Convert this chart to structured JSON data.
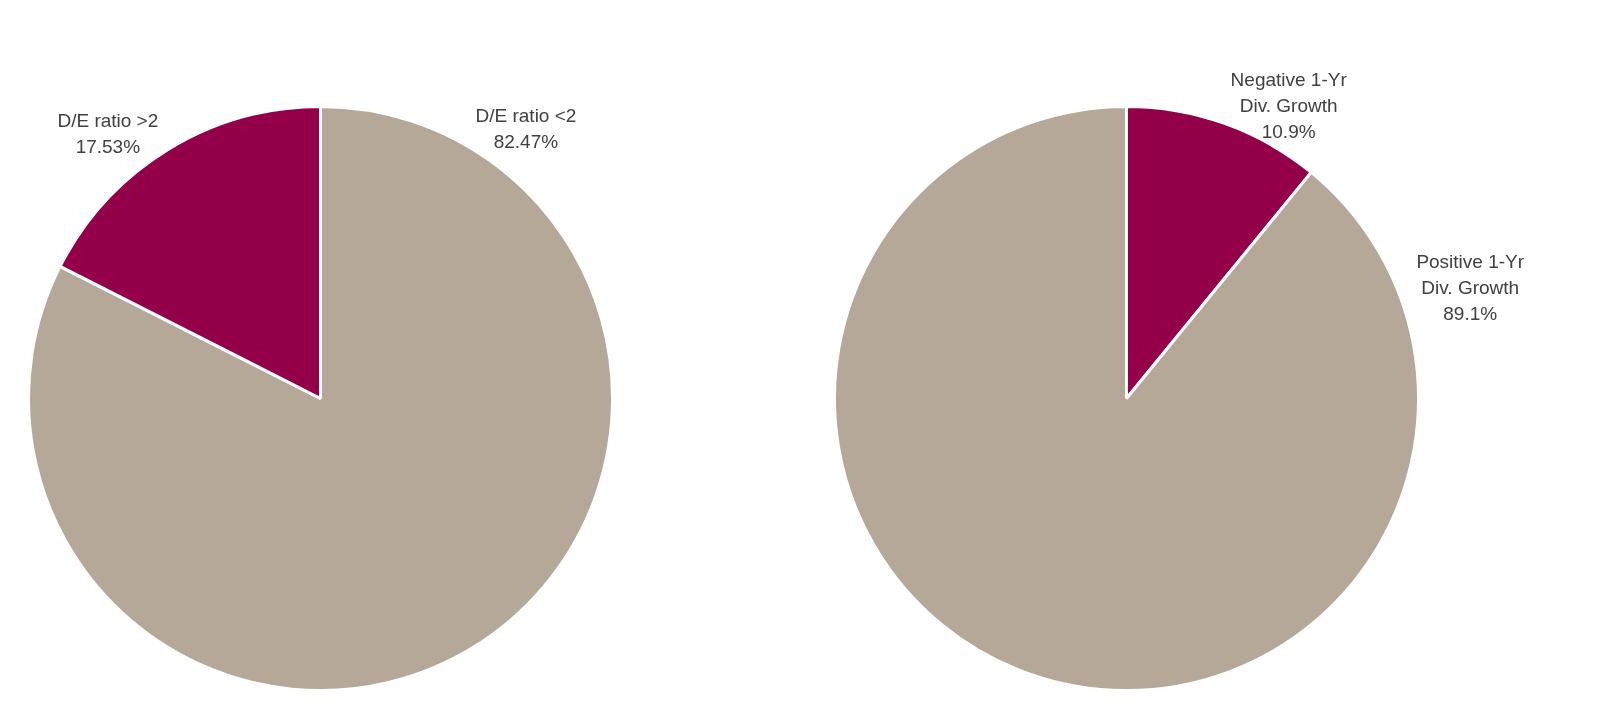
{
  "chart_data": [
    {
      "type": "pie",
      "categories": [
        "D/E ratio <2",
        "D/E ratio >2"
      ],
      "values": [
        82.47,
        17.53
      ],
      "colors": [
        "#b5a899",
        "#930049"
      ],
      "value_labels": [
        "82.47%",
        "17.53%"
      ],
      "legend": false
    },
    {
      "type": "pie",
      "categories": [
        "Negative 1-Yr Div. Growth",
        "Positive 1-Yr Div. Growth"
      ],
      "values": [
        10.9,
        89.1
      ],
      "colors": [
        "#930049",
        "#b5a899"
      ],
      "value_labels": [
        "10.9%",
        "89.1%"
      ],
      "legend": false
    }
  ]
}
